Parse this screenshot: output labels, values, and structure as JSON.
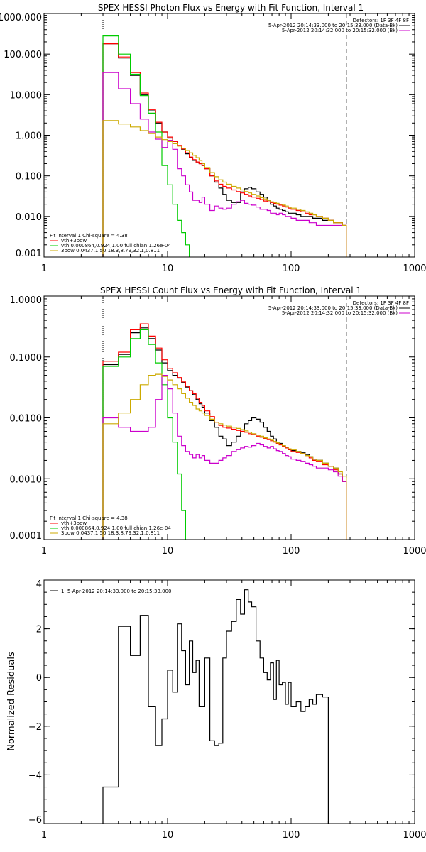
{
  "chart_data": [
    {
      "type": "line",
      "title": "SPEX HESSI Photon Flux vs Energy with Fit Function, Interval 1",
      "xscale": "log",
      "yscale": "log",
      "xlim": [
        1,
        1000
      ],
      "ylim": [
        0.001,
        1000
      ],
      "xticks": [
        1,
        10,
        100,
        1000
      ],
      "xticklabels": [
        "1",
        "10",
        "100",
        "1000"
      ],
      "yticks": [
        0.001,
        0.01,
        0.1,
        1,
        10,
        100,
        1000
      ],
      "yticklabels": [
        "0.001",
        "0.010",
        "0.100",
        "1.000",
        "10.000",
        "100.000",
        "1000.000"
      ],
      "vlines": [
        {
          "x": 3,
          "style": "dotted"
        },
        {
          "x": 280,
          "style": "dashed"
        }
      ],
      "legend_top": [
        "Detectors: 1F 3F 4F 8F",
        "5-Apr-2012 20:14:33.000 to 20:15:33.000 (Data-Bk)",
        "5-Apr-2012 20:14:32.000 to 20:15:32.000 (Bk)"
      ],
      "legend_bottom": [
        "Fit Interval 1   Chi-square = 4.38",
        "vth+3pow",
        "vth 0.000864,0.924,1.00  full chian 1.26e-04",
        "3pow 0.0437,1.50,18.3,8.79,32.1,0.811"
      ],
      "edges": [
        3,
        4,
        5,
        6,
        7,
        8,
        9,
        10,
        11,
        12,
        13,
        14,
        15,
        16,
        17,
        18,
        19,
        20,
        22,
        24,
        26,
        28,
        30,
        33,
        36,
        39,
        42,
        45,
        48,
        52,
        56,
        60,
        64,
        68,
        72,
        76,
        80,
        85,
        90,
        95,
        100,
        110,
        120,
        130,
        140,
        150,
        160,
        180,
        200,
        220,
        240,
        260,
        280
      ],
      "series": [
        {
          "color": "#000000",
          "values": [
            180,
            80,
            30,
            10,
            4,
            2,
            1.2,
            0.85,
            0.7,
            0.55,
            0.45,
            0.35,
            0.28,
            0.24,
            0.22,
            0.2,
            0.18,
            0.15,
            0.1,
            0.07,
            0.05,
            0.035,
            0.025,
            0.022,
            0.022,
            0.04,
            0.048,
            0.052,
            0.048,
            0.04,
            0.035,
            0.03,
            0.025,
            0.02,
            0.018,
            0.016,
            0.015,
            0.014,
            0.013,
            0.012,
            0.012,
            0.011,
            0.01,
            0.01,
            0.01,
            0.009,
            0.009,
            0.008,
            0.008,
            0.007,
            0.007,
            0.006
          ]
        },
        {
          "color": "#ff0000",
          "values": [
            180,
            85,
            35,
            11,
            4.3,
            2.1,
            1.2,
            0.9,
            0.7,
            0.56,
            0.46,
            0.37,
            0.29,
            0.25,
            0.22,
            0.2,
            0.18,
            0.15,
            0.1,
            0.075,
            0.062,
            0.055,
            0.05,
            0.045,
            0.041,
            0.038,
            0.035,
            0.032,
            0.03,
            0.028,
            0.026,
            0.024,
            0.023,
            0.022,
            0.021,
            0.02,
            0.019,
            0.018,
            0.017,
            0.016,
            0.015,
            0.014,
            0.013,
            0.012,
            0.011,
            0.011,
            0.01,
            0.009,
            0.008,
            0.007,
            0.007,
            0.006
          ]
        },
        {
          "color": "#00cc00",
          "values": [
            280,
            100,
            32,
            9.5,
            3.5,
            1.2,
            0.18,
            0.06,
            0.02,
            0.008,
            0.004,
            0.002
          ]
        },
        {
          "color": "#cc00cc",
          "values": [
            35,
            14,
            6,
            2.5,
            1.2,
            0.8,
            0.5,
            0.75,
            0.45,
            0.15,
            0.1,
            0.06,
            0.04,
            0.025,
            0.025,
            0.022,
            0.03,
            0.02,
            0.014,
            0.018,
            0.016,
            0.015,
            0.016,
            0.02,
            0.023,
            0.025,
            0.021,
            0.02,
            0.019,
            0.017,
            0.015,
            0.015,
            0.014,
            0.012,
            0.012,
            0.011,
            0.012,
            0.011,
            0.01,
            0.01,
            0.009,
            0.008,
            0.008,
            0.008,
            0.007,
            0.007,
            0.006,
            0.006,
            0.006,
            0.006,
            0.006,
            0.006
          ]
        },
        {
          "color": "#ccaa00",
          "values": [
            2.3,
            1.9,
            1.6,
            1.3,
            1.1,
            0.9,
            0.78,
            0.7,
            0.62,
            0.54,
            0.48,
            0.42,
            0.37,
            0.32,
            0.28,
            0.24,
            0.2,
            0.16,
            0.12,
            0.095,
            0.08,
            0.07,
            0.062,
            0.055,
            0.05,
            0.045,
            0.041,
            0.038,
            0.035,
            0.032,
            0.029,
            0.027,
            0.025,
            0.023,
            0.022,
            0.021,
            0.02,
            0.019,
            0.018,
            0.017,
            0.016,
            0.015,
            0.014,
            0.013,
            0.012,
            0.011,
            0.01,
            0.009,
            0.008,
            0.007,
            0.007,
            0.006
          ]
        }
      ]
    },
    {
      "type": "line",
      "title": "SPEX HESSI Count Flux vs Energy with Fit Function, Interval 1",
      "xscale": "log",
      "yscale": "log",
      "xlim": [
        1,
        1000
      ],
      "ylim": [
        0.0001,
        1
      ],
      "xticks": [
        1,
        10,
        100,
        1000
      ],
      "xticklabels": [
        "1",
        "10",
        "100",
        "1000"
      ],
      "yticks": [
        0.0001,
        0.001,
        0.01,
        0.1,
        1
      ],
      "yticklabels": [
        "0.0001",
        "0.0010",
        "0.0100",
        "0.1000",
        "1.0000"
      ],
      "vlines": [
        {
          "x": 3,
          "style": "dotted"
        },
        {
          "x": 280,
          "style": "dashed"
        }
      ],
      "legend_top": [
        "Detectors: 1F 3F 4F 8F",
        "5-Apr-2012 20:14:33.000 to 20:15:33.000 (Data-Bk)",
        "5-Apr-2012 20:14:32.000 to 20:15:32.000 (Bk)"
      ],
      "legend_bottom": [
        "Fit Interval 1   Chi-square = 4.38",
        "vth+3pow",
        "vth 0.000864,0.924,1.00  full chian 1.26e-04",
        "3pow 0.0437,1.50,18.3,8.79,32.1,0.811"
      ],
      "edges": [
        3,
        4,
        5,
        6,
        7,
        8,
        9,
        10,
        11,
        12,
        13,
        14,
        15,
        16,
        17,
        18,
        19,
        20,
        22,
        24,
        26,
        28,
        30,
        33,
        36,
        39,
        42,
        45,
        48,
        52,
        56,
        60,
        64,
        68,
        72,
        76,
        80,
        85,
        90,
        95,
        100,
        110,
        120,
        130,
        140,
        150,
        160,
        180,
        200,
        220,
        240,
        260,
        280
      ],
      "series": [
        {
          "color": "#000000",
          "values": [
            0.075,
            0.11,
            0.25,
            0.3,
            0.2,
            0.13,
            0.08,
            0.06,
            0.05,
            0.045,
            0.038,
            0.032,
            0.028,
            0.024,
            0.02,
            0.017,
            0.015,
            0.012,
            0.009,
            0.007,
            0.005,
            0.0045,
            0.0035,
            0.004,
            0.005,
            0.006,
            0.008,
            0.009,
            0.01,
            0.0095,
            0.0085,
            0.007,
            0.006,
            0.005,
            0.0045,
            0.004,
            0.0038,
            0.0035,
            0.0032,
            0.003,
            0.0029,
            0.0028,
            0.0027,
            0.0025,
            0.0023,
            0.0021,
            0.002,
            0.0018,
            0.0016,
            0.0015,
            0.0012,
            0.0009
          ]
        },
        {
          "color": "#ff0000",
          "values": [
            0.085,
            0.12,
            0.28,
            0.35,
            0.22,
            0.14,
            0.09,
            0.065,
            0.055,
            0.046,
            0.039,
            0.033,
            0.028,
            0.025,
            0.021,
            0.018,
            0.016,
            0.013,
            0.0105,
            0.0085,
            0.0075,
            0.007,
            0.0068,
            0.0065,
            0.0062,
            0.006,
            0.0058,
            0.0055,
            0.0053,
            0.005,
            0.0048,
            0.0046,
            0.0044,
            0.0042,
            0.004,
            0.0038,
            0.0036,
            0.0034,
            0.0032,
            0.003,
            0.0028,
            0.0027,
            0.0026,
            0.0024,
            0.0022,
            0.002,
            0.0019,
            0.0017,
            0.0016,
            0.0014,
            0.0012,
            0.0009
          ]
        },
        {
          "color": "#00cc00",
          "values": [
            0.07,
            0.1,
            0.2,
            0.28,
            0.16,
            0.08,
            0.035,
            0.01,
            0.004,
            0.0012,
            0.0003
          ]
        },
        {
          "color": "#cc00cc",
          "values": [
            0.01,
            0.007,
            0.006,
            0.006,
            0.007,
            0.02,
            0.05,
            0.03,
            0.012,
            0.005,
            0.0035,
            0.0028,
            0.0025,
            0.0022,
            0.0025,
            0.0022,
            0.0024,
            0.002,
            0.0018,
            0.0018,
            0.002,
            0.0022,
            0.0024,
            0.0028,
            0.003,
            0.0032,
            0.0034,
            0.0033,
            0.0035,
            0.0038,
            0.0036,
            0.0034,
            0.0032,
            0.0034,
            0.0031,
            0.0029,
            0.0028,
            0.0026,
            0.0024,
            0.0023,
            0.0021,
            0.002,
            0.0019,
            0.0018,
            0.0017,
            0.0016,
            0.0015,
            0.0015,
            0.0014,
            0.0013,
            0.0011,
            0.0009
          ]
        },
        {
          "color": "#ccaa00",
          "values": [
            0.008,
            0.012,
            0.02,
            0.035,
            0.05,
            0.052,
            0.048,
            0.042,
            0.035,
            0.03,
            0.025,
            0.021,
            0.018,
            0.016,
            0.014,
            0.013,
            0.012,
            0.011,
            0.0095,
            0.0085,
            0.008,
            0.0076,
            0.0073,
            0.007,
            0.0067,
            0.0064,
            0.0061,
            0.0058,
            0.0055,
            0.0052,
            0.005,
            0.0047,
            0.0045,
            0.0043,
            0.0041,
            0.0039,
            0.0037,
            0.0035,
            0.0033,
            0.0031,
            0.003,
            0.0028,
            0.0026,
            0.0024,
            0.0023,
            0.0021,
            0.002,
            0.0018,
            0.0016,
            0.0015,
            0.0013,
            0.0011
          ]
        }
      ]
    },
    {
      "type": "line",
      "title": "",
      "ylabel": "Normalized Residuals",
      "xscale": "log",
      "yscale": "linear",
      "xlim": [
        1,
        1000
      ],
      "ylim": [
        -6,
        4
      ],
      "xticks": [
        1,
        10,
        100,
        1000
      ],
      "xticklabels": [
        "1",
        "10",
        "100",
        "1000"
      ],
      "yticks": [
        -6,
        -4,
        -2,
        0,
        2,
        4
      ],
      "yticklabels": [
        "−6",
        "−4",
        "−2",
        "0",
        "2",
        "4"
      ],
      "legend_top_left": [
        "1.  5-Apr-2012 20:14:33.000 to 20:15:33.000"
      ],
      "edges": [
        3,
        4,
        5,
        6,
        7,
        8,
        9,
        10,
        11,
        12,
        13,
        14,
        15,
        16,
        17,
        18,
        19,
        20,
        22,
        24,
        26,
        28,
        30,
        33,
        36,
        39,
        42,
        45,
        48,
        52,
        56,
        60,
        64,
        68,
        72,
        76,
        80,
        85,
        90,
        95,
        100,
        110,
        120,
        130,
        140,
        150,
        160,
        180,
        200,
        220,
        240,
        260,
        280
      ],
      "series": [
        {
          "color": "#000000",
          "values": [
            -4.5,
            2.1,
            0.9,
            2.55,
            -1.2,
            -2.8,
            -1.7,
            0.3,
            -0.6,
            2.2,
            1.1,
            -0.3,
            1.5,
            0.2,
            0.7,
            -1.2,
            -1.2,
            0.8,
            -2.6,
            -2.8,
            -2.7,
            0.8,
            1.9,
            2.3,
            3.2,
            2.6,
            3.6,
            3.1,
            2.9,
            1.5,
            0.8,
            0.2,
            -0.1,
            0.6,
            -0.9,
            0.7,
            -0.3,
            -0.2,
            -1.1,
            -0.2,
            -1.2,
            -1.0,
            -1.4,
            -1.2,
            -0.9,
            -1.1,
            -0.7,
            -0.8
          ]
        }
      ]
    }
  ]
}
